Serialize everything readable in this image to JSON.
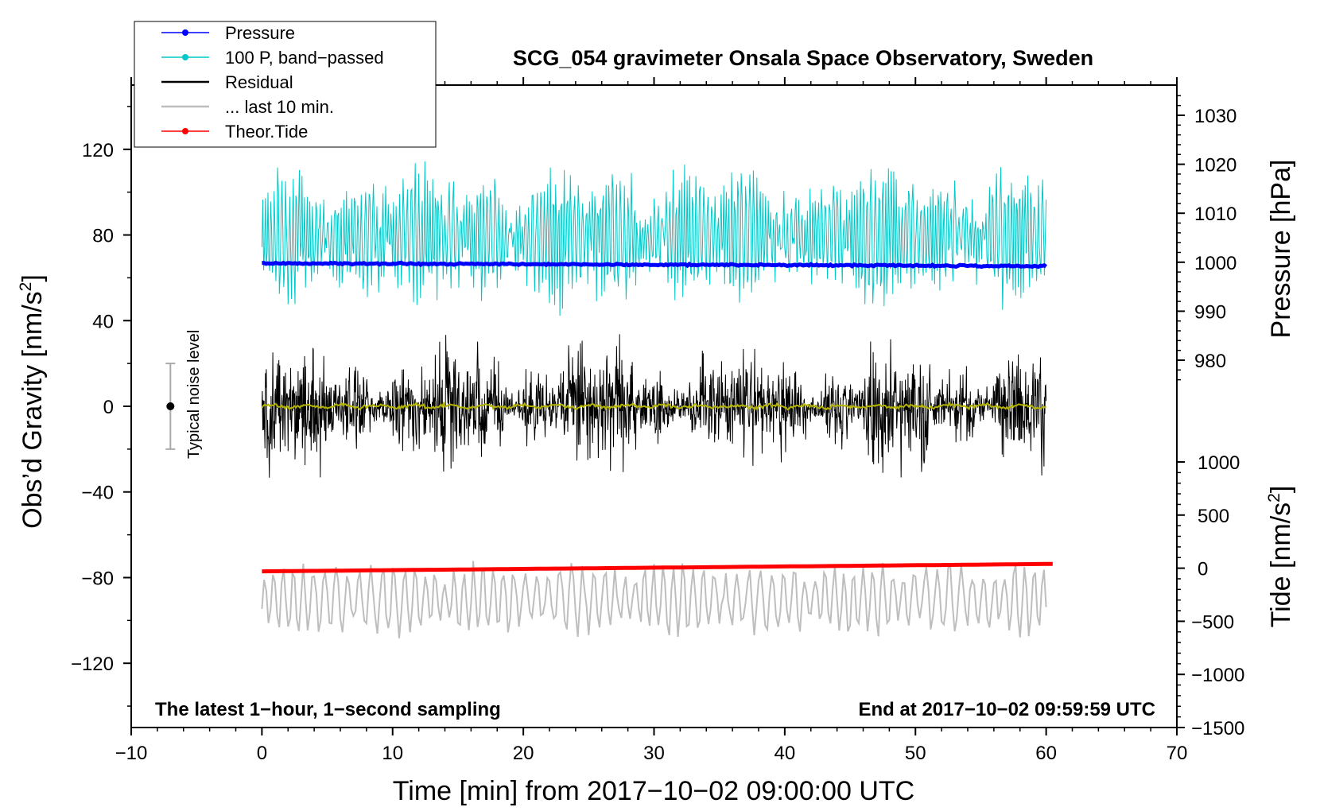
{
  "chart_data": {
    "type": "line",
    "title": "SCG_054 gravimeter Onsala Space Observatory, Sweden",
    "xlabel": "Time [min] from 2017−10−02 09:00:00 UTC",
    "ylabel_left": "Obs’d Gravity [nm/s",
    "ylabel_left_sup": "2",
    "ylabel_left_end": "]",
    "ylabel_right_top": "Pressure [hPa]",
    "ylabel_right_bottom": "Tide [nm/s",
    "ylabel_right_bottom_sup": "2",
    "ylabel_right_bottom_end": "]",
    "xlim": [
      -10,
      70
    ],
    "ylim_left": [
      -150,
      150
    ],
    "x_ticks": [
      "−10",
      "0",
      "10",
      "20",
      "30",
      "40",
      "50",
      "60",
      "70"
    ],
    "x_tick_values": [
      -10,
      0,
      10,
      20,
      30,
      40,
      50,
      60,
      70
    ],
    "y_left_ticks": [
      "120",
      "80",
      "40",
      "0",
      "−40",
      "−80",
      "−120"
    ],
    "y_left_tick_values": [
      120,
      80,
      40,
      0,
      -40,
      -80,
      -120
    ],
    "pressure_axis": {
      "range": [
        975,
        1035
      ],
      "ticks": [
        "1030",
        "1020",
        "1010",
        "1000",
        "990",
        "980"
      ],
      "tick_values": [
        1030,
        1020,
        1010,
        1000,
        990,
        980
      ]
    },
    "tide_axis": {
      "range": [
        -1500,
        1000
      ],
      "ticks": [
        "1000",
        "500",
        "0",
        "−500",
        "−1000",
        "−1500"
      ],
      "tick_values": [
        1000,
        500,
        0,
        -500,
        -1000,
        -1500
      ]
    },
    "legend": [
      {
        "label": "Pressure",
        "color": "#0000ff",
        "marker": true
      },
      {
        "label": "100 P, band−passed",
        "color": "#00c8c8",
        "marker": true
      },
      {
        "label": "Residual",
        "color": "#000000",
        "marker": false
      },
      {
        "label": "... last 10 min.",
        "color": "#bebebe",
        "marker": false
      },
      {
        "label": "Theor.Tide",
        "color": "#ff0000",
        "marker": true
      }
    ],
    "series": [
      {
        "name": "Pressure",
        "axis": "pressure",
        "color": "#0000ff",
        "x_range": [
          0,
          60
        ],
        "start": 999.8,
        "end": 999.2
      },
      {
        "name": "100 P, band−passed",
        "axis": "gravity",
        "color": "#00c8c8",
        "x_range": [
          0,
          60
        ],
        "center": 80,
        "amplitude": 25
      },
      {
        "name": "Residual",
        "axis": "gravity",
        "color": "#000000",
        "x_range": [
          0,
          60
        ],
        "center": 0,
        "amplitude": 15
      },
      {
        "name": "Residual smoothed",
        "axis": "gravity",
        "color": "#b4b400",
        "x_range": [
          0,
          60
        ],
        "center": 0,
        "amplitude": 1
      },
      {
        "name": "... last 10 min.",
        "axis": "gravity",
        "color": "#bebebe",
        "x_range": [
          0,
          60
        ],
        "center": -90,
        "amplitude": 12
      },
      {
        "name": "Theor.Tide",
        "axis": "tide",
        "color": "#ff0000",
        "x_range": [
          0,
          60.5
        ],
        "start": -30,
        "end": 40
      }
    ],
    "noise_bar": {
      "x": -7,
      "center": 0,
      "half_range": 20,
      "label": "Typical noise level"
    },
    "note_left": "The latest 1−hour, 1−second sampling",
    "note_right": "End at 2017−10−02 09:59:59 UTC"
  }
}
